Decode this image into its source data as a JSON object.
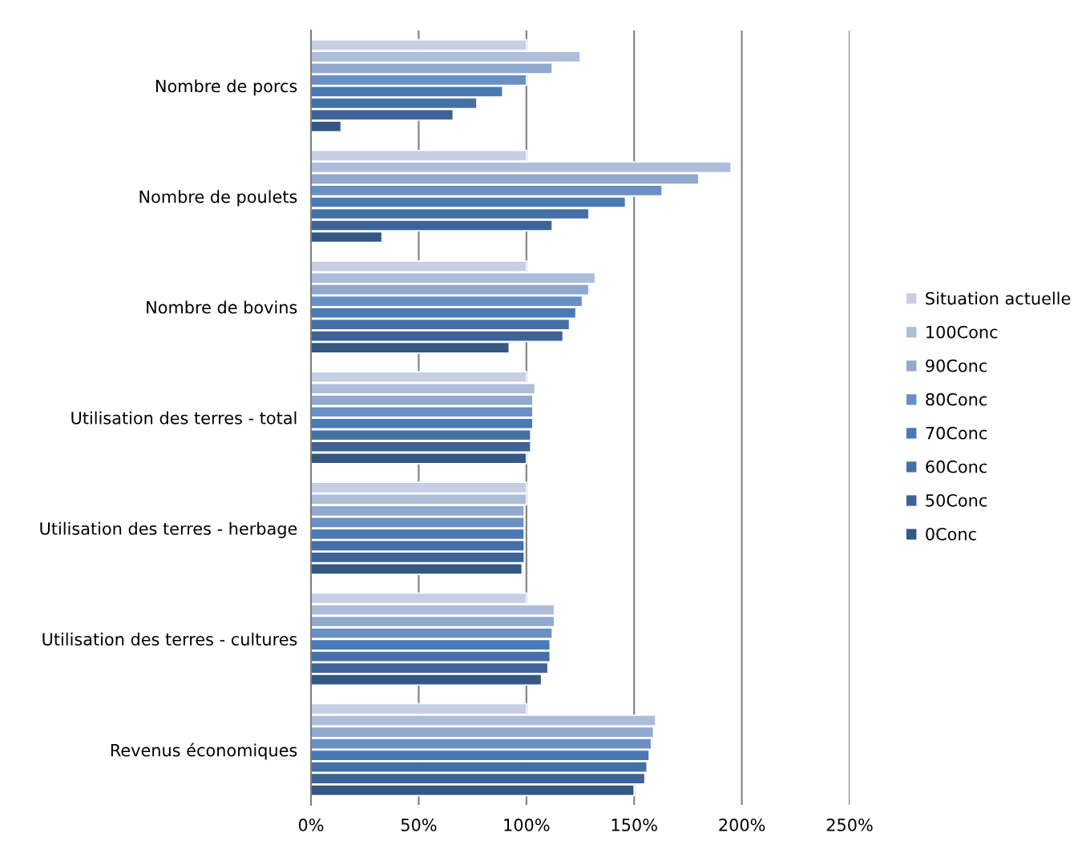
{
  "chart_data": {
    "type": "bar",
    "orientation": "horizontal",
    "categories": [
      "Nombre de porcs",
      "Nombre de poulets",
      "Nombre de bovins",
      "Utilisation des terres - total",
      "Utilisation des terres - herbage",
      "Utilisation des terres - cultures",
      "Revenus économiques"
    ],
    "series": [
      {
        "name": "Situation actuelle",
        "color": "#c6cfe3",
        "values": [
          100,
          100,
          100,
          100,
          100,
          100,
          100
        ]
      },
      {
        "name": "100Conc",
        "color": "#adbdda",
        "values": [
          125,
          195,
          132,
          104,
          100,
          113,
          160
        ]
      },
      {
        "name": "90Conc",
        "color": "#91a8cf",
        "values": [
          112,
          180,
          129,
          103,
          99,
          113,
          159
        ]
      },
      {
        "name": "80Conc",
        "color": "#6a8fc3",
        "values": [
          100,
          163,
          126,
          103,
          99,
          112,
          158
        ]
      },
      {
        "name": "70Conc",
        "color": "#4a7ab5",
        "values": [
          89,
          146,
          123,
          103,
          99,
          111,
          157
        ]
      },
      {
        "name": "60Conc",
        "color": "#4570a5",
        "values": [
          77,
          129,
          120,
          102,
          99,
          111,
          156
        ]
      },
      {
        "name": "50Conc",
        "color": "#3e6396",
        "values": [
          66,
          112,
          117,
          102,
          99,
          110,
          155
        ]
      },
      {
        "name": "0Conc",
        "color": "#345784",
        "values": [
          14,
          33,
          92,
          100,
          98,
          107,
          150
        ]
      }
    ],
    "xlim": [
      0,
      250
    ],
    "xticks": [
      {
        "value": 0,
        "label": "0%"
      },
      {
        "value": 50,
        "label": "50%"
      },
      {
        "value": 100,
        "label": "100%"
      },
      {
        "value": 150,
        "label": "150%"
      },
      {
        "value": 200,
        "label": "200%"
      },
      {
        "value": 250,
        "label": "250%"
      }
    ],
    "grid": "x",
    "legend": "right"
  }
}
